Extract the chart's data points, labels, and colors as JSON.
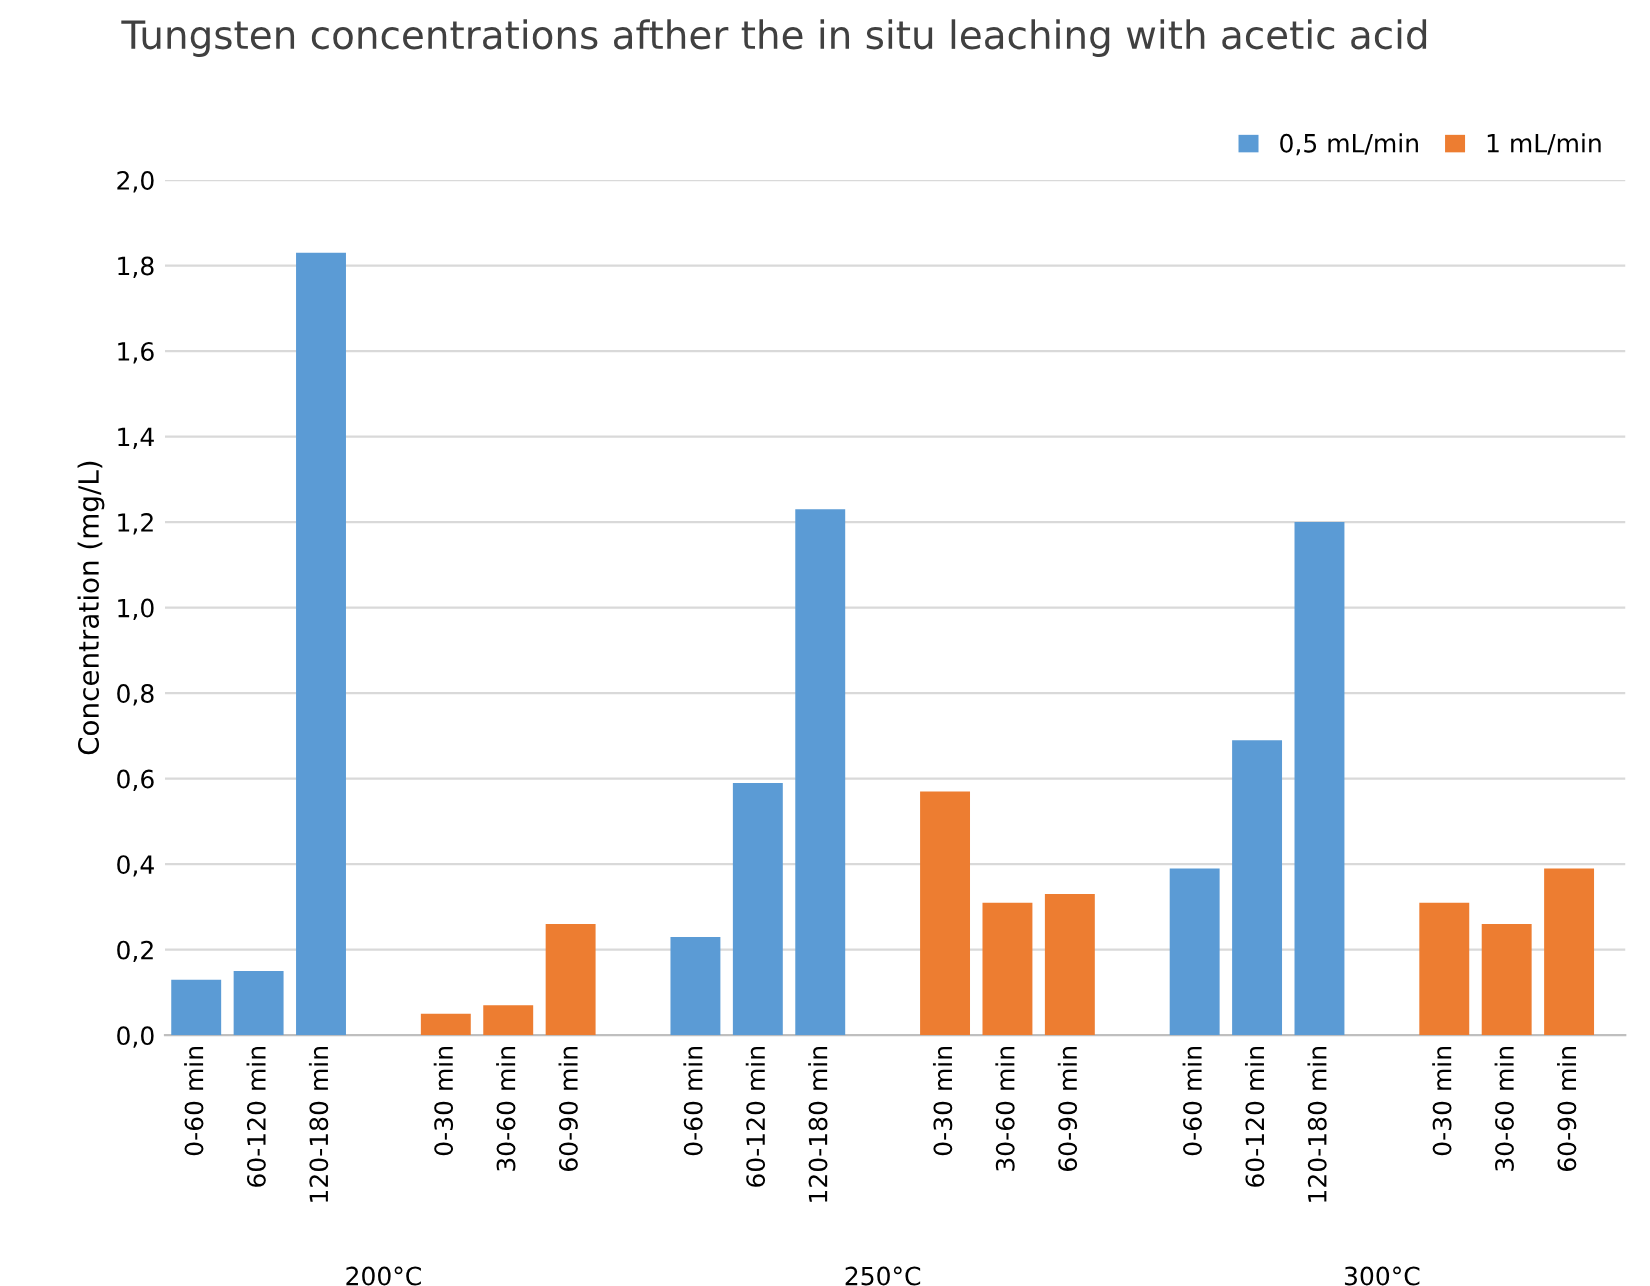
{
  "chart_data": {
    "type": "bar",
    "title": "Tungsten concentrations afther the in situ leaching with acetic acid",
    "ylabel": "Concentration (mg/L)",
    "categories": [
      "0-60 min",
      "60-120 min",
      "120-180 min",
      null,
      "0-30 min",
      "30-60 min",
      "60-90 min",
      null,
      "0-60 min",
      "60-120 min",
      "120-180 min",
      null,
      "0-30 min",
      "30-60 min",
      "60-90 min",
      null,
      "0-60 min",
      "60-120 min",
      "120-180 min",
      null,
      "0-30 min",
      "30-60 min",
      "60-90 min"
    ],
    "series": [
      {
        "name": "0,5 mL/min",
        "color": "#5b9bd5",
        "values": [
          0.13,
          0.15,
          1.83,
          null,
          null,
          null,
          null,
          null,
          0.23,
          0.59,
          1.23,
          null,
          null,
          null,
          null,
          null,
          0.39,
          0.69,
          1.2,
          null,
          null,
          null,
          null
        ]
      },
      {
        "name": "1 mL/min",
        "color": "#ed7d31",
        "values": [
          null,
          null,
          null,
          null,
          0.05,
          0.07,
          0.26,
          null,
          null,
          null,
          null,
          null,
          0.57,
          0.31,
          0.33,
          null,
          null,
          null,
          null,
          null,
          0.31,
          0.26,
          0.39
        ]
      }
    ],
    "annotations": [
      "200°C",
      "250°C",
      "300°C"
    ],
    "ylim": [
      0,
      2.0
    ],
    "yticks": [
      {
        "value": 0,
        "label": "0,0"
      },
      {
        "value": 0.2,
        "label": "0,2"
      },
      {
        "value": 0.4,
        "label": "0,4"
      },
      {
        "value": 0.6,
        "label": "0,6"
      },
      {
        "value": 0.8,
        "label": "0,8"
      },
      {
        "value": 1.0,
        "label": "1,0"
      },
      {
        "value": 1.2,
        "label": "1,2"
      },
      {
        "value": 1.4,
        "label": "1,4"
      },
      {
        "value": 1.6,
        "label": "1,6"
      },
      {
        "value": 1.8,
        "label": "1,8"
      },
      {
        "value": 2.0,
        "label": "2,0"
      }
    ],
    "grid": "y",
    "legend": "top right"
  }
}
